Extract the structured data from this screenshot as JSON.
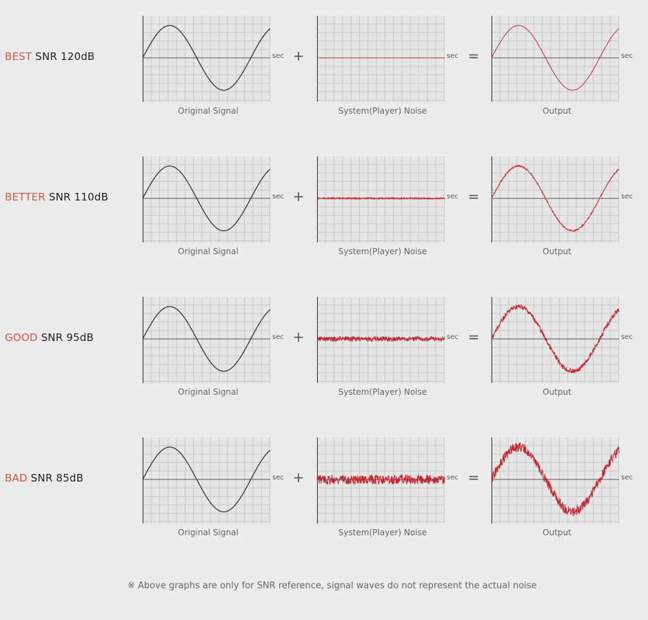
{
  "rows": [
    {
      "grade": "BEST",
      "snr": "SNR 120dB",
      "noise_level": 0.0,
      "noise_color": "#c0272d"
    },
    {
      "grade": "BETTER",
      "snr": "SNR 110dB",
      "noise_level": 0.02,
      "noise_color": "#c0272d"
    },
    {
      "grade": "GOOD",
      "snr": "SNR 95dB",
      "noise_level": 0.07,
      "noise_color": "#c0272d"
    },
    {
      "grade": "BAD",
      "snr": "SNR 85dB",
      "noise_level": 0.14,
      "noise_color": "#c0272d"
    }
  ],
  "captions": {
    "signal": "Original Signal",
    "noise": "System(Player) Noise",
    "output": "Output"
  },
  "axis_unit": "sec",
  "operators": {
    "plus": "+",
    "equals": "="
  },
  "colors": {
    "signal": "#333333",
    "output": "#c0272d",
    "grade": "#d4583e",
    "grid": "#c8c8c8",
    "panel_bg": "#e6e6e6"
  },
  "footnote": "※ Above graphs are only for SNR reference, signal waves do not represent the actual noise"
}
